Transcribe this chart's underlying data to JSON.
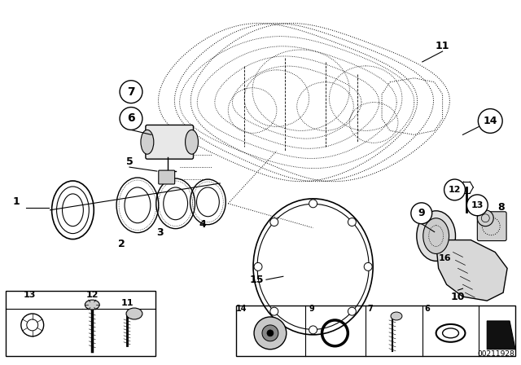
{
  "bg_color": "#ffffff",
  "fig_width": 6.4,
  "fig_height": 4.48,
  "diagram_number": "00211928"
}
